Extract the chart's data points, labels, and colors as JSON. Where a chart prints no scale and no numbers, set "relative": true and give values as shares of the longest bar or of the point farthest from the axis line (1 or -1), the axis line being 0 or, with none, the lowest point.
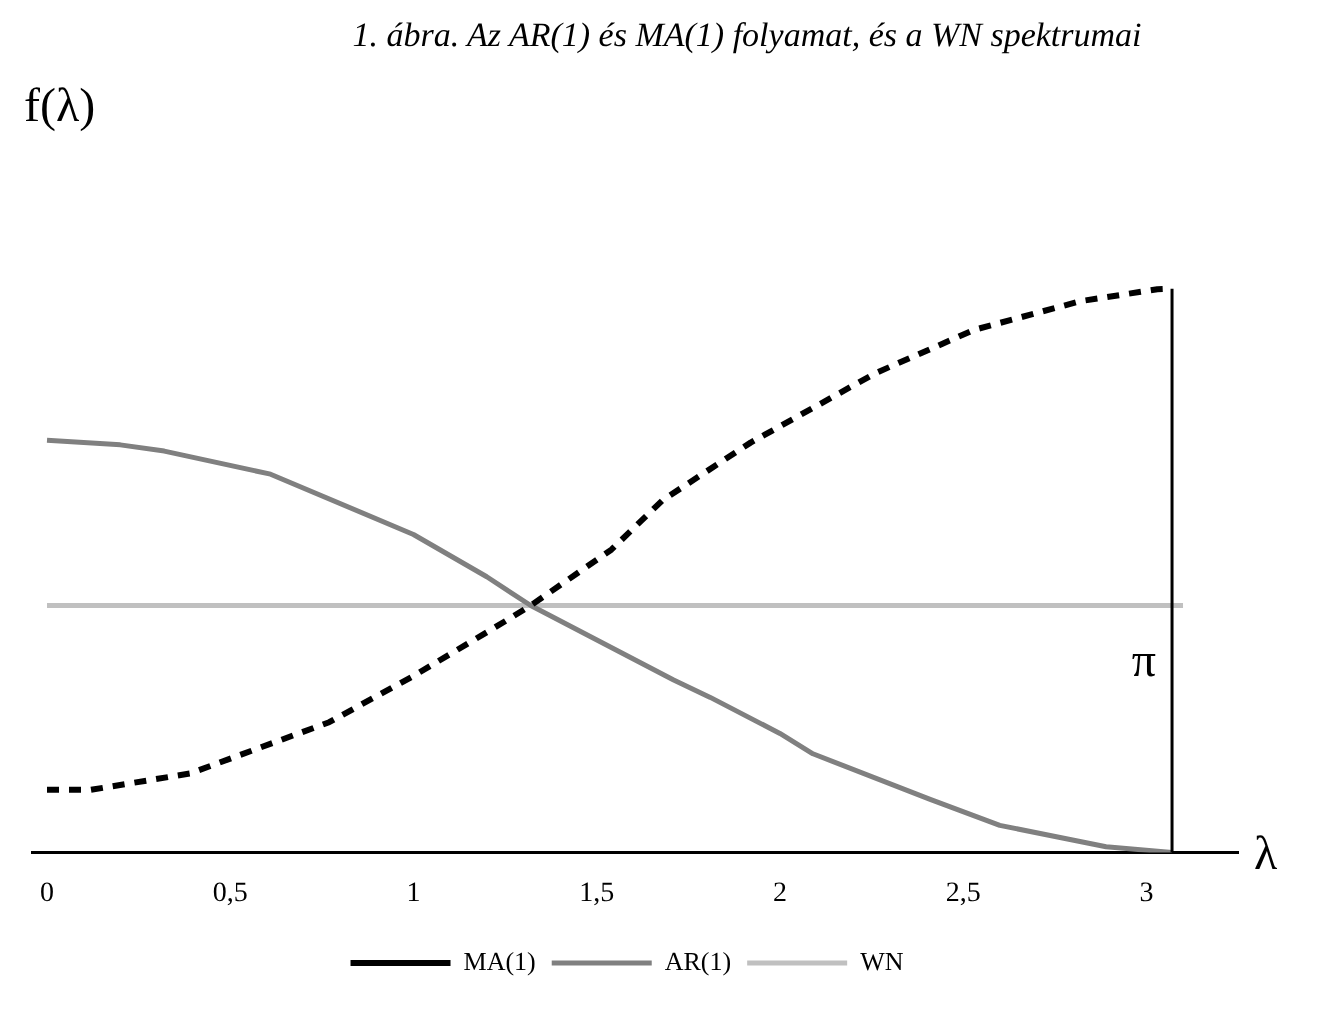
{
  "chart_data": {
    "type": "line",
    "title": "1. ábra. Az AR(1) és MA(1) folyamat, és a WN spektrumai",
    "ylabel": "f(λ)",
    "xlabel": "λ",
    "relative": true,
    "legend": "bottom",
    "xlim": [
      -0.04,
      3.25
    ],
    "xticks": [
      0,
      {
        "value": 0.5,
        "label": "0,5"
      },
      1,
      {
        "value": 1.5,
        "label": "1,5"
      },
      2,
      {
        "value": 2.5,
        "label": "2,5"
      },
      3
    ],
    "ref_lines": [
      {
        "axis": "x",
        "value": 3.07,
        "label": "π",
        "color": "#000000"
      }
    ],
    "series": [
      {
        "name": "MA(1)",
        "color": "#000000",
        "line_style": "dashed",
        "x": [
          0,
          0.12,
          0.39,
          0.77,
          1.0,
          1.25,
          1.32,
          1.54,
          1.68,
          1.92,
          2.26,
          2.53,
          2.82,
          3.03,
          3.07
        ],
        "values": [
          0.111,
          0.111,
          0.14,
          0.231,
          0.313,
          0.41,
          0.438,
          0.537,
          0.625,
          0.727,
          0.85,
          0.927,
          0.978,
          0.999,
          1
        ]
      },
      {
        "name": "AR(1)",
        "color": "#808080",
        "line_style": "solid",
        "x": [
          0,
          0.2,
          0.32,
          0.61,
          1.0,
          1.2,
          1.32,
          1.71,
          1.81,
          2.0,
          2.09,
          2.41,
          2.6,
          2.89,
          3.07
        ],
        "values": [
          0.731,
          0.723,
          0.712,
          0.671,
          0.564,
          0.489,
          0.438,
          0.306,
          0.275,
          0.211,
          0.175,
          0.094,
          0.048,
          0.01,
          0
        ]
      },
      {
        "name": "WN",
        "color": "#c0c0c0",
        "line_style": "solid",
        "x": [
          0,
          3.1
        ],
        "values": [
          0.438,
          0.438
        ]
      }
    ]
  }
}
